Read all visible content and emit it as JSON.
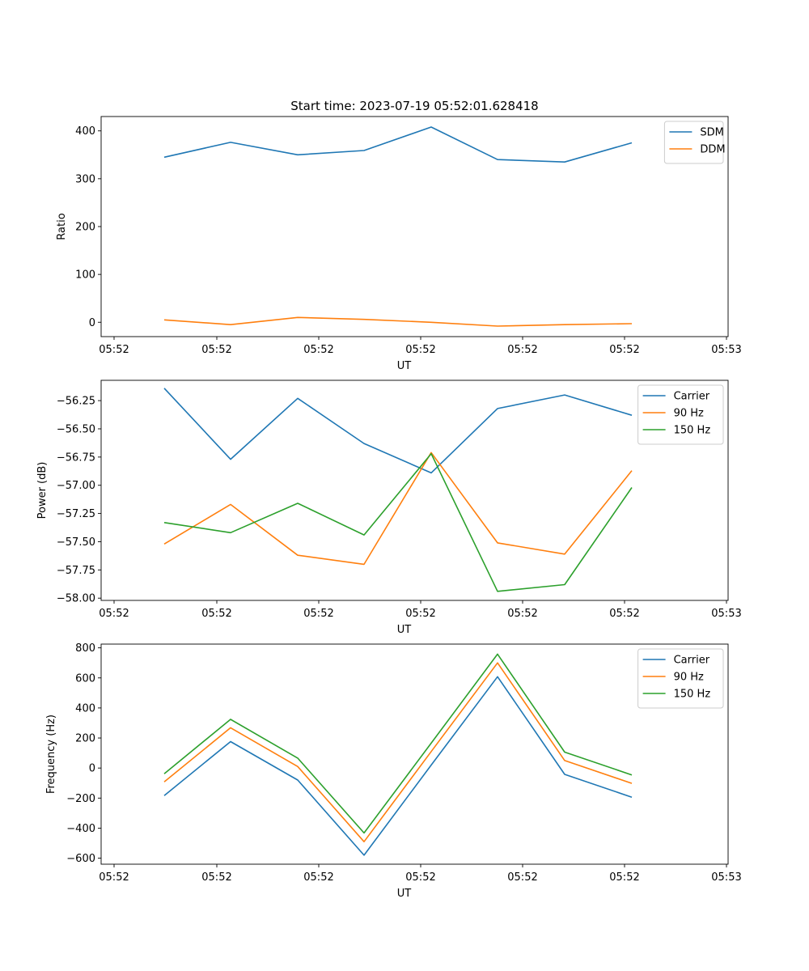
{
  "title": "Start time: 2023-07-19 05:52:01.628418",
  "colors": {
    "blue": "#1f77b4",
    "orange": "#ff7f0e",
    "green": "#2ca02c"
  },
  "chart_data": [
    {
      "type": "line",
      "xlabel": "UT",
      "ylabel": "Ratio",
      "x_tick_labels": [
        "05:52",
        "05:52",
        "05:52",
        "05:52",
        "05:52",
        "05:52",
        "05:52"
      ],
      "x_last_tick_label": "05:53",
      "y_ticks": [
        0,
        100,
        200,
        300,
        400
      ],
      "y_tick_labels": [
        "0",
        "100",
        "200",
        "300",
        "400"
      ],
      "ylim": [
        -30,
        430
      ],
      "legend_position": "top-right",
      "series": [
        {
          "name": "SDM",
          "color": "#1f77b4",
          "values": [
            345,
            376,
            350,
            359,
            408,
            340,
            335,
            375
          ]
        },
        {
          "name": "DDM",
          "color": "#ff7f0e",
          "values": [
            5,
            -5,
            10,
            6,
            0,
            -8,
            -5,
            -3
          ]
        }
      ]
    },
    {
      "type": "line",
      "xlabel": "UT",
      "ylabel": "Power (dB)",
      "x_tick_labels": [
        "05:52",
        "05:52",
        "05:52",
        "05:52",
        "05:52",
        "05:52",
        "05:52"
      ],
      "x_last_tick_label": "05:53",
      "y_ticks": [
        -58.0,
        -57.75,
        -57.5,
        -57.25,
        -57.0,
        -56.75,
        -56.5,
        -56.25
      ],
      "y_tick_labels": [
        "−58.00",
        "−57.75",
        "−57.50",
        "−57.25",
        "−57.00",
        "−56.75",
        "−56.50",
        "−56.25"
      ],
      "ylim": [
        -58.02,
        -56.07
      ],
      "legend_position": "top-right",
      "series": [
        {
          "name": "Carrier",
          "color": "#1f77b4",
          "values": [
            -56.14,
            -56.77,
            -56.23,
            -56.63,
            -56.89,
            -56.32,
            -56.2,
            -56.38
          ]
        },
        {
          "name": "90 Hz",
          "color": "#ff7f0e",
          "values": [
            -57.52,
            -57.17,
            -57.62,
            -57.7,
            -56.71,
            -57.51,
            -57.61,
            -56.87
          ]
        },
        {
          "name": "150 Hz",
          "color": "#2ca02c",
          "values": [
            -57.33,
            -57.42,
            -57.16,
            -57.44,
            -56.72,
            -57.94,
            -57.88,
            -57.02
          ]
        }
      ]
    },
    {
      "type": "line",
      "xlabel": "UT",
      "ylabel": "Frequency (Hz)",
      "x_tick_labels": [
        "05:52",
        "05:52",
        "05:52",
        "05:52",
        "05:52",
        "05:52",
        "05:52"
      ],
      "x_last_tick_label": "05:53",
      "y_ticks": [
        -600,
        -400,
        -200,
        0,
        200,
        400,
        600,
        800
      ],
      "y_tick_labels": [
        "−600",
        "−400",
        "−200",
        "0",
        "200",
        "400",
        "600",
        "800"
      ],
      "ylim": [
        -640,
        825
      ],
      "legend_position": "top-right",
      "series": [
        {
          "name": "Carrier",
          "color": "#1f77b4",
          "values": [
            -183,
            176,
            -80,
            -580,
            20,
            608,
            -42,
            -194
          ]
        },
        {
          "name": "90 Hz",
          "color": "#ff7f0e",
          "values": [
            -92,
            268,
            10,
            -490,
            110,
            700,
            50,
            -102
          ]
        },
        {
          "name": "150 Hz",
          "color": "#2ca02c",
          "values": [
            -38,
            324,
            66,
            -432,
            166,
            758,
            106,
            -46
          ]
        }
      ]
    }
  ]
}
